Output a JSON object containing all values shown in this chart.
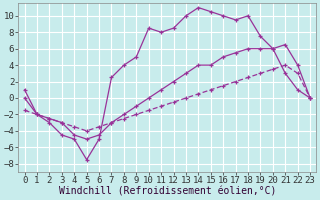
{
  "background_color": "#c8ecec",
  "grid_color": "#ffffff",
  "line_color": "#993399",
  "xlabel": "Windchill (Refroidissement éolien,°C)",
  "xlabel_fontsize": 7,
  "tick_fontsize": 6.5,
  "xlim": [
    -0.5,
    23.5
  ],
  "ylim": [
    -9,
    11.5
  ],
  "yticks": [
    -8,
    -6,
    -4,
    -2,
    0,
    2,
    4,
    6,
    8,
    10
  ],
  "xticks": [
    0,
    1,
    2,
    3,
    4,
    5,
    6,
    7,
    8,
    9,
    10,
    11,
    12,
    13,
    14,
    15,
    16,
    17,
    18,
    19,
    20,
    21,
    22,
    23
  ],
  "series1_x": [
    0,
    1,
    2,
    3,
    4,
    5,
    6,
    7,
    8,
    9,
    10,
    11,
    12,
    13,
    14,
    15,
    16,
    17,
    18,
    19,
    20,
    21,
    22,
    23
  ],
  "series1_y": [
    1,
    -2,
    -3,
    -4.5,
    -5,
    -7.5,
    -5,
    2.5,
    4,
    5,
    8.5,
    8,
    8.5,
    10,
    11,
    10.5,
    10,
    9.5,
    10,
    7.5,
    6,
    3,
    1,
    0
  ],
  "series2_x": [
    0,
    1,
    2,
    3,
    4,
    5,
    6,
    7,
    8,
    9,
    10,
    11,
    12,
    13,
    14,
    15,
    16,
    17,
    18,
    19,
    20,
    21,
    22,
    23
  ],
  "series2_y": [
    0,
    -2,
    -2.5,
    -3,
    -4.5,
    -5,
    -4.5,
    -3,
    -2,
    -1,
    0,
    1,
    2,
    3,
    4,
    4,
    5,
    5.5,
    6,
    6,
    6,
    6.5,
    4,
    0
  ],
  "series3_x": [
    0,
    1,
    2,
    3,
    4,
    5,
    6,
    7,
    8,
    9,
    10,
    11,
    12,
    13,
    14,
    15,
    16,
    17,
    18,
    19,
    20,
    21,
    22,
    23
  ],
  "series3_y": [
    -1.5,
    -2,
    -2.5,
    -3,
    -3.5,
    -4,
    -3.5,
    -3,
    -2.5,
    -2,
    -1.5,
    -1,
    -0.5,
    0,
    0.5,
    1,
    1.5,
    2,
    2.5,
    3,
    3.5,
    4,
    3,
    0
  ]
}
